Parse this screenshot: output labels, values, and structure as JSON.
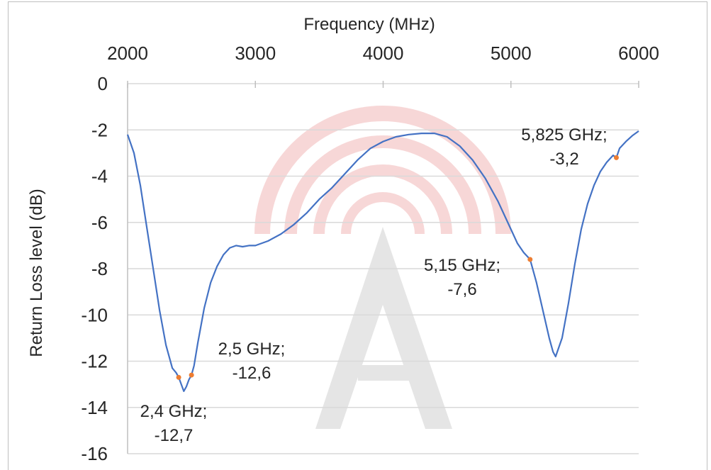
{
  "chart_data": {
    "type": "line",
    "xlabel": "Frequency (MHz)",
    "ylabel": "Return Loss level (dB)",
    "x_axis_position": "top",
    "xlim": [
      2000,
      6000
    ],
    "ylim": [
      -16,
      0
    ],
    "x_ticks": [
      2000,
      3000,
      4000,
      5000,
      6000
    ],
    "y_ticks": [
      0,
      -2,
      -4,
      -6,
      -8,
      -10,
      -12,
      -14,
      -16
    ],
    "x_tick_labels": [
      "2000",
      "3000",
      "4000",
      "5000",
      "6000"
    ],
    "y_tick_labels": [
      "0",
      "-2",
      "-4",
      "-6",
      "-8",
      "-10",
      "-12",
      "-14",
      "-16"
    ],
    "grid": "horizontal",
    "series": [
      {
        "color": "#4472c4",
        "x": [
          2000,
          2050,
          2100,
          2150,
          2200,
          2250,
          2300,
          2350,
          2380,
          2400,
          2420,
          2440,
          2460,
          2480,
          2500,
          2520,
          2550,
          2600,
          2650,
          2700,
          2750,
          2800,
          2850,
          2900,
          2950,
          3000,
          3100,
          3200,
          3300,
          3400,
          3500,
          3600,
          3700,
          3800,
          3900,
          4000,
          4100,
          4200,
          4300,
          4400,
          4500,
          4600,
          4700,
          4800,
          4900,
          5000,
          5050,
          5100,
          5150,
          5200,
          5250,
          5300,
          5330,
          5350,
          5400,
          5450,
          5500,
          5550,
          5600,
          5650,
          5700,
          5750,
          5800,
          5825,
          5850,
          5900,
          5950,
          6000
        ],
        "y": [
          -2.2,
          -3.0,
          -4.4,
          -6.2,
          -8.0,
          -9.8,
          -11.3,
          -12.3,
          -12.5,
          -12.7,
          -13.0,
          -13.3,
          -13.1,
          -12.8,
          -12.6,
          -12.2,
          -11.2,
          -9.7,
          -8.6,
          -7.9,
          -7.4,
          -7.1,
          -7.0,
          -7.05,
          -7.0,
          -7.0,
          -6.8,
          -6.5,
          -6.1,
          -5.6,
          -5.0,
          -4.5,
          -3.9,
          -3.3,
          -2.8,
          -2.5,
          -2.3,
          -2.2,
          -2.15,
          -2.15,
          -2.3,
          -2.7,
          -3.3,
          -4.1,
          -5.1,
          -6.3,
          -6.9,
          -7.3,
          -7.6,
          -8.6,
          -9.8,
          -11.0,
          -11.6,
          -11.8,
          -11.0,
          -9.5,
          -7.8,
          -6.3,
          -5.2,
          -4.4,
          -3.8,
          -3.4,
          -3.1,
          -3.2,
          -2.8,
          -2.5,
          -2.25,
          -2.05
        ]
      }
    ],
    "highlighted_points": [
      {
        "x": 2400,
        "y": -12.7,
        "label_line1": "2,4 GHz;",
        "label_line2": "-12,7"
      },
      {
        "x": 2500,
        "y": -12.6,
        "label_line1": "2,5 GHz;",
        "label_line2": "-12,6"
      },
      {
        "x": 5150,
        "y": -7.6,
        "label_line1": "5,15 GHz;",
        "label_line2": "-7,6"
      },
      {
        "x": 5825,
        "y": -3.2,
        "label_line1": "5,825 GHz;",
        "label_line2": "-3,2"
      }
    ],
    "marker_color": "#ed7d31"
  }
}
